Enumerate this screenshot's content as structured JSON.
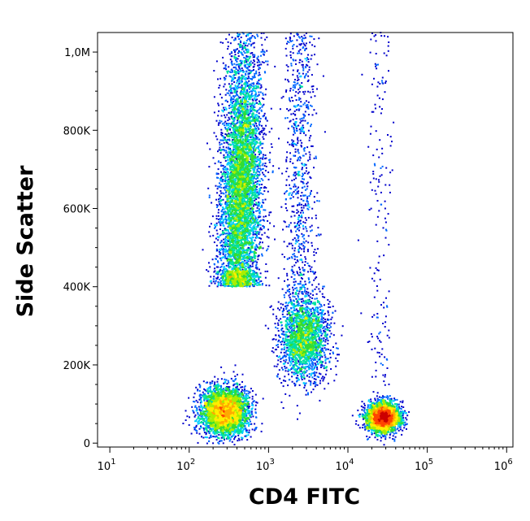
{
  "chart_data": {
    "type": "scatter",
    "subtype": "flow-cytometry-density-dot-plot",
    "xlabel": "CD4 FITC",
    "ylabel": "Side Scatter",
    "x_scale": "log",
    "y_scale": "linear",
    "xlim": [
      7,
      1200000
    ],
    "ylim": [
      -10000,
      1050000
    ],
    "x_ticks": [
      {
        "value": 10,
        "base": "10",
        "exp": "1"
      },
      {
        "value": 100,
        "base": "10",
        "exp": "2"
      },
      {
        "value": 1000,
        "base": "10",
        "exp": "3"
      },
      {
        "value": 10000,
        "base": "10",
        "exp": "4"
      },
      {
        "value": 100000,
        "base": "10",
        "exp": "5"
      },
      {
        "value": 1000000,
        "base": "10",
        "exp": "6"
      }
    ],
    "y_ticks": [
      {
        "value": 0,
        "label": "0"
      },
      {
        "value": 200000,
        "label": "200K"
      },
      {
        "value": 400000,
        "label": "400K"
      },
      {
        "value": 600000,
        "label": "600K"
      },
      {
        "value": 800000,
        "label": "800K"
      },
      {
        "value": 1000000,
        "label": "1,0M"
      }
    ],
    "color_scale": [
      "#0000cc",
      "#0066ff",
      "#00ccff",
      "#00e0a0",
      "#33dd33",
      "#aaee00",
      "#ffee00",
      "#ffaa00",
      "#ff4400",
      "#cc0000"
    ],
    "grid": false,
    "legend": "none",
    "populations": [
      {
        "x_center": 450,
        "x_spread_decades": 0.13,
        "y_low": 400000,
        "y_high": 1050000,
        "density_peak_y": 650000,
        "relative_density": 1.0
      },
      {
        "x_center": 280,
        "x_spread_decades": 0.15,
        "y_center": 80000,
        "y_spread": 30000,
        "relative_density": 0.6
      },
      {
        "x_center": 2800,
        "x_spread_decades": 0.15,
        "y_center": 270000,
        "y_spread": 55000,
        "relative_density": 0.35
      },
      {
        "x_center": 28000,
        "x_spread_decades": 0.1,
        "y_center": 65000,
        "y_spread": 18000,
        "relative_density": 0.55
      },
      {
        "x_center": 2500,
        "x_spread_decades": 0.1,
        "y_low": 380000,
        "y_high": 1050000,
        "relative_density": 0.12
      },
      {
        "x_center": 25000,
        "x_spread_decades": 0.08,
        "y_low": 100000,
        "y_high": 1050000,
        "relative_density": 0.03
      }
    ]
  }
}
